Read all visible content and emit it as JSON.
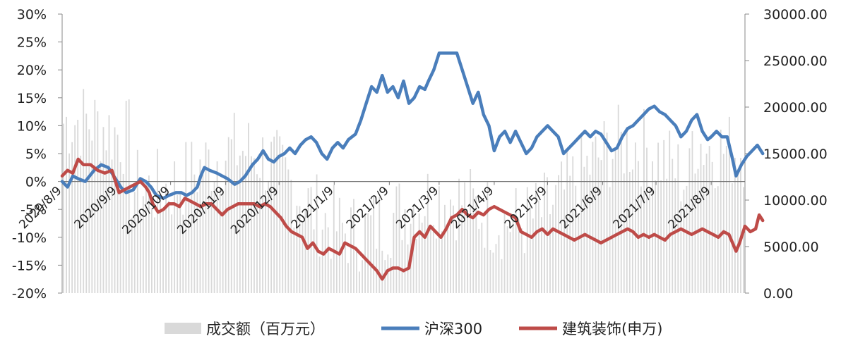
{
  "chart_data": {
    "type": "bar+line",
    "x_labels": [
      "2020/8/9",
      "2020/9/9",
      "2020/10/9",
      "2020/11/9",
      "2020/12/9",
      "2021/1/9",
      "2021/2/9",
      "2021/3/9",
      "2021/4/9",
      "2021/5/9",
      "2021/6/9",
      "2021/7/9",
      "2021/8/9"
    ],
    "x_span": 384,
    "x_label_positions": [
      0,
      31,
      61,
      92,
      122,
      153,
      184,
      212,
      243,
      273,
      304,
      334,
      365
    ],
    "y_left": {
      "ticks": [
        "30%",
        "25%",
        "20%",
        "15%",
        "10%",
        "5%",
        "0%",
        "-5%",
        "-10%",
        "-15%",
        "-20%"
      ],
      "min": -20,
      "max": 30
    },
    "y_right": {
      "ticks": [
        "30000.00",
        "25000.00",
        "20000.00",
        "15000.00",
        "10000.00",
        "5000.00",
        "0.00"
      ],
      "min": 0,
      "max": 30000
    },
    "legend": [
      "成交额（百万元）",
      "沪深300",
      "建筑装饰(申万)"
    ],
    "colors": {
      "volume": "#d9d9d9",
      "hs300": "#4a7ebb",
      "construction": "#be4b48",
      "axis": "#888888"
    },
    "series": [
      {
        "name": "沪深300",
        "axis": "left",
        "points": [
          [
            0,
            0
          ],
          [
            3,
            -1
          ],
          [
            6,
            1
          ],
          [
            9,
            0.5
          ],
          [
            13,
            0
          ],
          [
            18,
            2
          ],
          [
            22,
            3
          ],
          [
            26,
            2.5
          ],
          [
            29,
            1
          ],
          [
            33,
            -1
          ],
          [
            36,
            -2
          ],
          [
            40,
            -1.5
          ],
          [
            44,
            0.5
          ],
          [
            47,
            0
          ],
          [
            50,
            -1
          ],
          [
            53,
            -2.5
          ],
          [
            57,
            -3
          ],
          [
            60,
            -2.5
          ],
          [
            64,
            -2
          ],
          [
            67,
            -2
          ],
          [
            70,
            -2.5
          ],
          [
            73,
            -2
          ],
          [
            76,
            -1
          ],
          [
            78,
            1
          ],
          [
            80,
            2.5
          ],
          [
            83,
            2
          ],
          [
            87,
            1.5
          ],
          [
            90,
            1
          ],
          [
            93,
            0.5
          ],
          [
            97,
            -0.5
          ],
          [
            100,
            0
          ],
          [
            103,
            1
          ],
          [
            107,
            3
          ],
          [
            110,
            4
          ],
          [
            113,
            5.5
          ],
          [
            116,
            4
          ],
          [
            119,
            3.5
          ],
          [
            122,
            4.5
          ],
          [
            125,
            5
          ],
          [
            128,
            6
          ],
          [
            131,
            5
          ],
          [
            134,
            6.5
          ],
          [
            137,
            7.5
          ],
          [
            140,
            8
          ],
          [
            143,
            7
          ],
          [
            146,
            5
          ],
          [
            149,
            4
          ],
          [
            152,
            6
          ],
          [
            155,
            7
          ],
          [
            158,
            6
          ],
          [
            161,
            7.5
          ],
          [
            165,
            8.5
          ],
          [
            168,
            11
          ],
          [
            171,
            14
          ],
          [
            174,
            17
          ],
          [
            177,
            16
          ],
          [
            180,
            19
          ],
          [
            183,
            16
          ],
          [
            186,
            17
          ],
          [
            189,
            15
          ],
          [
            192,
            18
          ],
          [
            195,
            14
          ],
          [
            198,
            15
          ],
          [
            201,
            17
          ],
          [
            204,
            16.5
          ],
          [
            206,
            18
          ],
          [
            209,
            20
          ],
          [
            212,
            23
          ],
          [
            215,
            23
          ],
          [
            218,
            23
          ],
          [
            222,
            23
          ],
          [
            225,
            20
          ],
          [
            228,
            17
          ],
          [
            231,
            14
          ],
          [
            234,
            16
          ],
          [
            237,
            12
          ],
          [
            240,
            10
          ],
          [
            243,
            5.5
          ],
          [
            246,
            8
          ],
          [
            249,
            9
          ],
          [
            252,
            7
          ],
          [
            255,
            9
          ],
          [
            258,
            7
          ],
          [
            261,
            5
          ],
          [
            264,
            6
          ],
          [
            267,
            8
          ],
          [
            270,
            9
          ],
          [
            273,
            10
          ],
          [
            276,
            9
          ],
          [
            279,
            8
          ],
          [
            282,
            5
          ],
          [
            285,
            6
          ],
          [
            288,
            7
          ],
          [
            291,
            8
          ],
          [
            294,
            9
          ],
          [
            297,
            8
          ],
          [
            300,
            9
          ],
          [
            303,
            8.5
          ],
          [
            306,
            7
          ],
          [
            309,
            5.5
          ],
          [
            312,
            6
          ],
          [
            315,
            8
          ],
          [
            318,
            9.5
          ],
          [
            321,
            10
          ],
          [
            324,
            11
          ],
          [
            327,
            12
          ],
          [
            330,
            13
          ],
          [
            333,
            13.5
          ],
          [
            336,
            12.5
          ],
          [
            339,
            12
          ],
          [
            342,
            11
          ],
          [
            345,
            10
          ],
          [
            348,
            8
          ],
          [
            351,
            9
          ],
          [
            354,
            11
          ],
          [
            357,
            12
          ],
          [
            360,
            9
          ],
          [
            363,
            7.5
          ],
          [
            365,
            8
          ],
          [
            368,
            9
          ],
          [
            371,
            8
          ],
          [
            374,
            8
          ],
          [
            377,
            4
          ],
          [
            379,
            1
          ],
          [
            382,
            3
          ],
          [
            385,
            4.5
          ],
          [
            388,
            5.5
          ],
          [
            391,
            6.5
          ],
          [
            394,
            5
          ]
        ]
      },
      {
        "name": "建筑装饰(申万)",
        "axis": "left",
        "points": [
          [
            0,
            1
          ],
          [
            3,
            2
          ],
          [
            6,
            1.5
          ],
          [
            9,
            4
          ],
          [
            12,
            3
          ],
          [
            16,
            3
          ],
          [
            20,
            2
          ],
          [
            24,
            1.5
          ],
          [
            28,
            2
          ],
          [
            32,
            -2
          ],
          [
            35,
            -1.5
          ],
          [
            38,
            -1
          ],
          [
            41,
            -0.5
          ],
          [
            44,
            0
          ],
          [
            47,
            -1
          ],
          [
            49,
            -2
          ],
          [
            51,
            -4
          ],
          [
            54,
            -5.5
          ],
          [
            57,
            -5
          ],
          [
            60,
            -4
          ],
          [
            63,
            -4
          ],
          [
            66,
            -4.5
          ],
          [
            69,
            -3
          ],
          [
            72,
            -3.5
          ],
          [
            75,
            -4
          ],
          [
            78,
            -4.5
          ],
          [
            81,
            -4
          ],
          [
            84,
            -4
          ],
          [
            87,
            -5
          ],
          [
            90,
            -6
          ],
          [
            93,
            -5
          ],
          [
            96,
            -4.5
          ],
          [
            99,
            -4
          ],
          [
            102,
            -4
          ],
          [
            105,
            -4
          ],
          [
            108,
            -4
          ],
          [
            111,
            -4.5
          ],
          [
            114,
            -4
          ],
          [
            117,
            -4.5
          ],
          [
            120,
            -5.5
          ],
          [
            123,
            -6.5
          ],
          [
            126,
            -8
          ],
          [
            129,
            -9
          ],
          [
            132,
            -9.5
          ],
          [
            135,
            -10
          ],
          [
            138,
            -12
          ],
          [
            141,
            -11
          ],
          [
            144,
            -12.5
          ],
          [
            147,
            -13
          ],
          [
            150,
            -12
          ],
          [
            153,
            -12.5
          ],
          [
            156,
            -13
          ],
          [
            159,
            -11
          ],
          [
            162,
            -11.5
          ],
          [
            165,
            -12
          ],
          [
            168,
            -13
          ],
          [
            171,
            -14
          ],
          [
            174,
            -15
          ],
          [
            177,
            -16
          ],
          [
            180,
            -17.5
          ],
          [
            183,
            -16
          ],
          [
            186,
            -15.5
          ],
          [
            189,
            -15.5
          ],
          [
            192,
            -16
          ],
          [
            195,
            -15.5
          ],
          [
            198,
            -10
          ],
          [
            201,
            -9
          ],
          [
            204,
            -10
          ],
          [
            207,
            -8
          ],
          [
            210,
            -9
          ],
          [
            213,
            -10
          ],
          [
            216,
            -8.5
          ],
          [
            219,
            -6.5
          ],
          [
            222,
            -6
          ],
          [
            225,
            -5
          ],
          [
            228,
            -6
          ],
          [
            231,
            -6.5
          ],
          [
            234,
            -5.5
          ],
          [
            237,
            -6
          ],
          [
            240,
            -5
          ],
          [
            243,
            -4.5
          ],
          [
            246,
            -5
          ],
          [
            249,
            -5.5
          ],
          [
            252,
            -6
          ],
          [
            255,
            -6.5
          ],
          [
            258,
            -9
          ],
          [
            261,
            -9.5
          ],
          [
            264,
            -10
          ],
          [
            267,
            -9
          ],
          [
            270,
            -8.5
          ],
          [
            273,
            -9.5
          ],
          [
            276,
            -8.5
          ],
          [
            279,
            -9
          ],
          [
            282,
            -9.5
          ],
          [
            285,
            -10
          ],
          [
            288,
            -10.5
          ],
          [
            291,
            -10
          ],
          [
            294,
            -9.5
          ],
          [
            297,
            -10
          ],
          [
            300,
            -10.5
          ],
          [
            303,
            -11
          ],
          [
            306,
            -10.5
          ],
          [
            309,
            -10
          ],
          [
            312,
            -9.5
          ],
          [
            315,
            -9
          ],
          [
            318,
            -8.5
          ],
          [
            321,
            -9
          ],
          [
            324,
            -10
          ],
          [
            327,
            -9.5
          ],
          [
            330,
            -10
          ],
          [
            333,
            -9.5
          ],
          [
            336,
            -10
          ],
          [
            339,
            -10.5
          ],
          [
            342,
            -9.5
          ],
          [
            345,
            -9
          ],
          [
            348,
            -8.5
          ],
          [
            351,
            -9
          ],
          [
            354,
            -9.5
          ],
          [
            357,
            -9
          ],
          [
            360,
            -8.5
          ],
          [
            363,
            -9
          ],
          [
            366,
            -9.5
          ],
          [
            369,
            -10
          ],
          [
            372,
            -9
          ],
          [
            375,
            -9.5
          ],
          [
            377,
            -11
          ],
          [
            379,
            -12.5
          ],
          [
            381,
            -11
          ],
          [
            384,
            -8
          ],
          [
            387,
            -9
          ],
          [
            390,
            -8.5
          ],
          [
            392,
            -6
          ],
          [
            394,
            -7
          ]
        ]
      }
    ]
  }
}
